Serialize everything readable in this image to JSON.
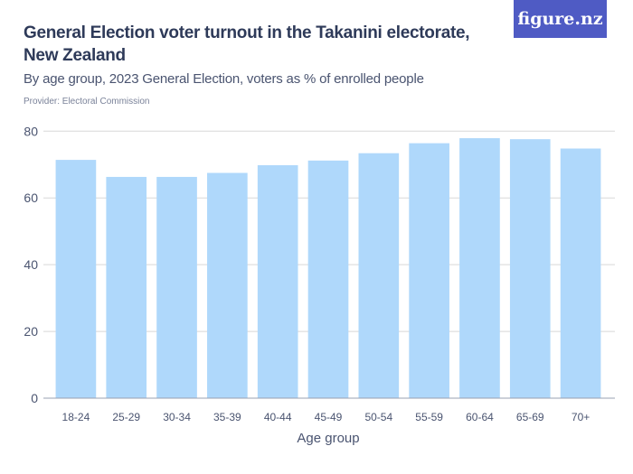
{
  "header": {
    "title": "General Election voter turnout in the Takanini electorate, New Zealand",
    "subtitle": "By age group, 2023 General Election, voters as % of enrolled people",
    "provider": "Provider: Electoral Commission",
    "logo": "figure.nz"
  },
  "chart_data": {
    "type": "bar",
    "title": "General Election voter turnout in the Takanini electorate, New Zealand",
    "subtitle": "By age group, 2023 General Election, voters as % of enrolled people",
    "xlabel": "Age group",
    "ylabel": "",
    "categories": [
      "18-24",
      "25-29",
      "30-34",
      "35-39",
      "40-44",
      "45-49",
      "50-54",
      "55-59",
      "60-64",
      "65-69",
      "70+"
    ],
    "values": [
      71.4,
      66.3,
      66.3,
      67.5,
      69.8,
      71.2,
      73.4,
      76.4,
      77.9,
      77.6,
      74.8
    ],
    "ylim": [
      0,
      80
    ],
    "yticks": [
      0,
      20,
      40,
      60,
      80
    ],
    "grid": true,
    "bar_color": "#afd8fb"
  }
}
